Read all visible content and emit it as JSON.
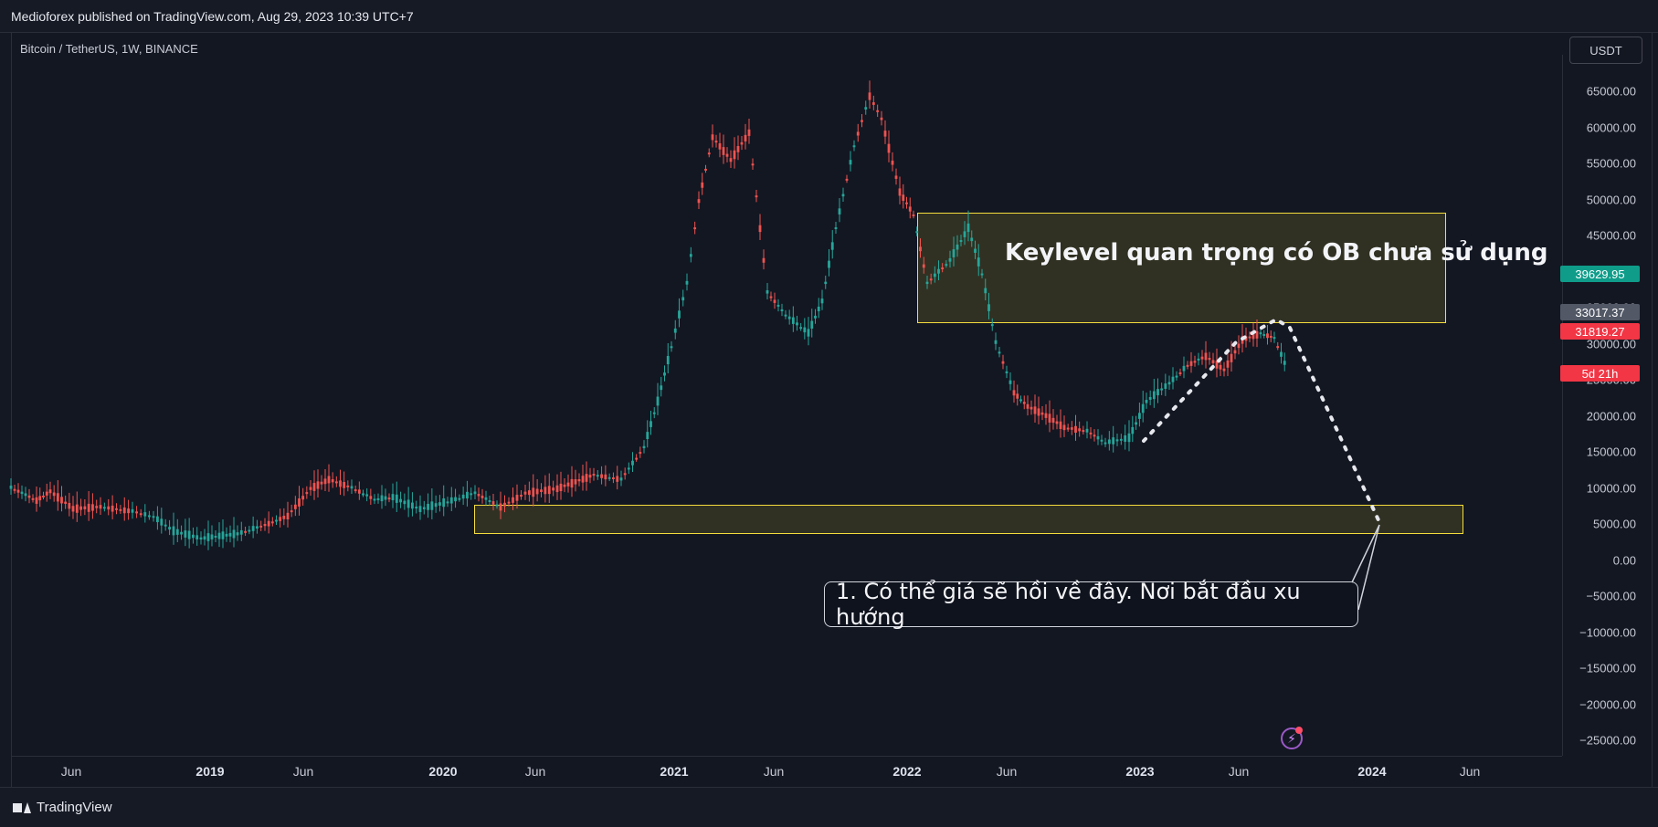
{
  "header": {
    "published_text": "Medioforex published on TradingView.com, Aug 29, 2023 10:39 UTC+7"
  },
  "symbol": {
    "legend": "Bitcoin / TetherUS, 1W, BINANCE"
  },
  "currency_button": "USDT",
  "price_axis": {
    "ticks": [
      "65000.00",
      "60000.00",
      "55000.00",
      "50000.00",
      "45000.00",
      "40000.00",
      "35000.00",
      "30000.00",
      "25000.00",
      "20000.00",
      "15000.00",
      "10000.00",
      "5000.00",
      "0.00",
      "−5000.00",
      "−10000.00",
      "−15000.00",
      "−20000.00",
      "−25000.00"
    ],
    "current_price_badge": "39629.95",
    "grey_badge": "33017.37",
    "red_badge": "31819.27",
    "countdown_badge": "5d 21h"
  },
  "time_axis": {
    "labels": [
      "Jun",
      "2019",
      "Jun",
      "2020",
      "Jun",
      "2021",
      "Jun",
      "2022",
      "Jun",
      "2023",
      "Jun",
      "2024",
      "Jun"
    ],
    "major": [
      false,
      true,
      false,
      true,
      false,
      true,
      false,
      true,
      false,
      true,
      false,
      true,
      false
    ]
  },
  "annotations": {
    "ob_text": "Keylevel quan trọng có OB chưa sử dụng",
    "callout_text": "1. Có thể giá sẽ hồi về đây. Nơi bắt đầu xu hướng"
  },
  "footer": {
    "brand": "TradingView"
  },
  "colors": {
    "up": "#26a69a",
    "down": "#ef5350",
    "current": "#0f9d8a",
    "grey_badge": "#525866",
    "red_badge": "#f23645"
  },
  "icons": {
    "alert": "lightning-alert-icon",
    "brand": "tradingview-logo-icon"
  }
}
